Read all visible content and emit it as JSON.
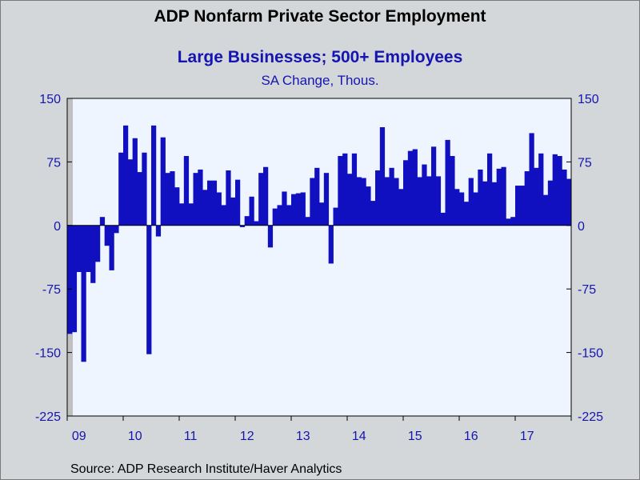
{
  "title": "ADP Nonfarm Private Sector Employment",
  "subtitle": "Large Businesses; 500+ Employees",
  "units": "SA Change, Thous.",
  "source": "Source:  ADP Research Institute/Haver Analytics",
  "colors": {
    "bar": "#1010c0",
    "plot_bg": "#eef5ff",
    "text": "#1515b0",
    "recession_shade": "#c0c0c0"
  },
  "chart_data": {
    "type": "bar",
    "start": "2009-01",
    "frequency": "monthly",
    "ylim": [
      -225,
      150
    ],
    "yticks": [
      -225,
      -150,
      -75,
      0,
      75,
      150
    ],
    "ytick_labels": [
      "-225",
      "-150",
      "-75",
      "0",
      "75",
      "150"
    ],
    "dual_axis": true,
    "grid": false,
    "year_labels": [
      "09",
      "10",
      "11",
      "12",
      "13",
      "14",
      "15",
      "16",
      "17"
    ],
    "values": [
      -128,
      -126,
      -55,
      -161,
      -55,
      -68,
      -43,
      10,
      -24,
      -53,
      -9,
      86,
      118,
      78,
      103,
      63,
      86,
      -152,
      118,
      -13,
      104,
      62,
      64,
      45,
      26,
      82,
      26,
      62,
      66,
      42,
      53,
      53,
      39,
      24,
      65,
      33,
      54,
      -2,
      11,
      34,
      5,
      62,
      69,
      -26,
      20,
      24,
      40,
      24,
      37,
      38,
      39,
      10,
      56,
      68,
      27,
      62,
      -45,
      21,
      82,
      85,
      61,
      85,
      57,
      56,
      46,
      29,
      65,
      116,
      57,
      68,
      56,
      43,
      77,
      88,
      90,
      57,
      72,
      58,
      93,
      58,
      15,
      101,
      82,
      43,
      39,
      28,
      56,
      39,
      66,
      52,
      85,
      51,
      67,
      69,
      8,
      10,
      47,
      47,
      64,
      109,
      68,
      85,
      36,
      53,
      84,
      82,
      66,
      55
    ]
  }
}
